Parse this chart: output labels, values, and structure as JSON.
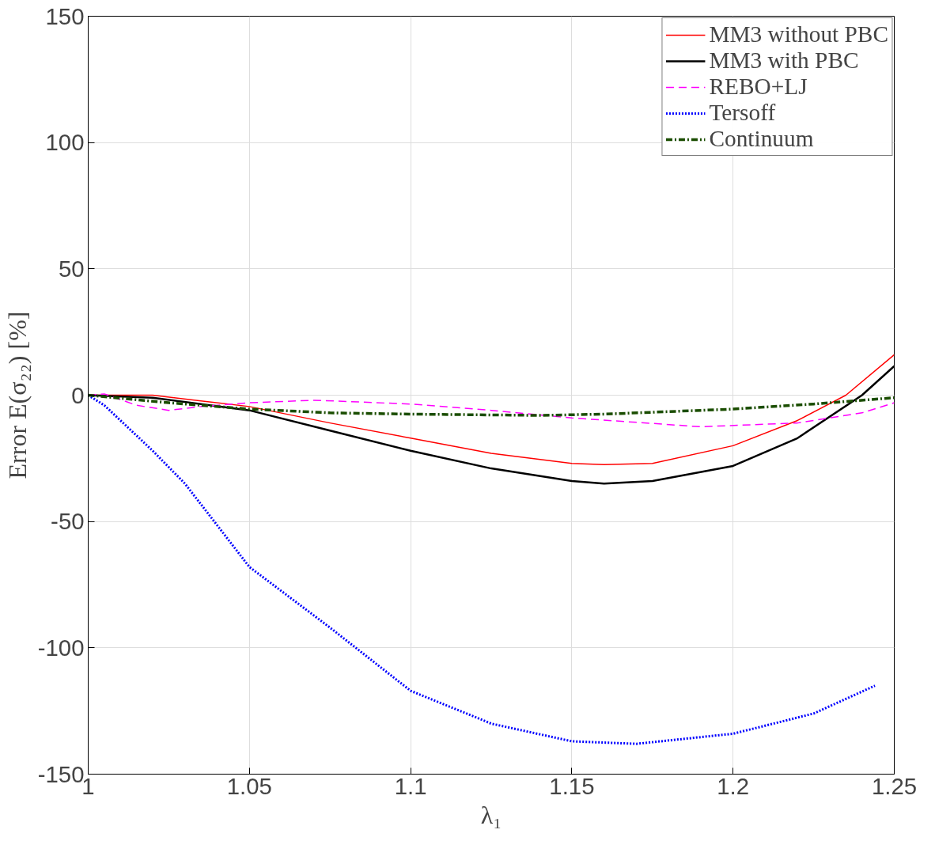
{
  "chart_data": {
    "type": "line",
    "xlabel": "λ₁",
    "ylabel": "Error E(σ₂₂) [%]",
    "xlim": [
      1,
      1.25
    ],
    "ylim": [
      -150,
      150
    ],
    "xticks": [
      1,
      1.05,
      1.1,
      1.15,
      1.2,
      1.25
    ],
    "yticks": [
      -150,
      -100,
      -50,
      0,
      50,
      100,
      150
    ],
    "grid": true,
    "legend": "top right",
    "marker": "none",
    "series": [
      {
        "name": "MM3 without PBC",
        "color": "#ff0000",
        "line_style": "solid",
        "x": [
          1,
          1.02,
          1.05,
          1.075,
          1.1,
          1.125,
          1.15,
          1.16,
          1.175,
          1.2,
          1.22,
          1.235,
          1.25
        ],
        "values": [
          0,
          0,
          -4.5,
          -11,
          -17,
          -23,
          -27,
          -27.5,
          -27,
          -20,
          -10,
          0,
          16
        ]
      },
      {
        "name": "MM3 with PBC",
        "color": "#000000",
        "line_style": "solid",
        "x": [
          1,
          1.02,
          1.05,
          1.075,
          1.1,
          1.125,
          1.15,
          1.16,
          1.175,
          1.2,
          1.22,
          1.24,
          1.25
        ],
        "values": [
          0,
          -1,
          -6,
          -14,
          -22,
          -29,
          -34,
          -35,
          -34,
          -28,
          -17,
          0,
          11.5
        ]
      },
      {
        "name": "REBO+LJ",
        "color": "#ff00ff",
        "line_style": "dashed",
        "x": [
          1,
          1.005,
          1.015,
          1.025,
          1.035,
          1.05,
          1.07,
          1.1,
          1.125,
          1.15,
          1.19,
          1.22,
          1.24,
          1.25
        ],
        "values": [
          0,
          0.5,
          -4,
          -6,
          -4.5,
          -3,
          -2,
          -3.5,
          -6,
          -9,
          -12.5,
          -11,
          -7,
          -3
        ]
      },
      {
        "name": "Tersoff",
        "color": "#0000ff",
        "line_style": "dotted",
        "x": [
          1,
          1.005,
          1.01,
          1.02,
          1.03,
          1.05,
          1.075,
          1.1,
          1.125,
          1.15,
          1.17,
          1.2,
          1.225,
          1.244
        ],
        "values": [
          0,
          -4,
          -10,
          -22,
          -35,
          -68,
          -92,
          -117,
          -130,
          -137,
          -138,
          -134,
          -126,
          -115
        ]
      },
      {
        "name": "Continuum",
        "color": "#1a4d00",
        "line_style": "dashdot",
        "x": [
          1,
          1.025,
          1.05,
          1.075,
          1.1,
          1.14,
          1.16,
          1.2,
          1.225,
          1.25
        ],
        "values": [
          0,
          -3,
          -5.5,
          -7,
          -7.5,
          -8,
          -7.5,
          -5.5,
          -3.5,
          -1
        ]
      }
    ]
  }
}
